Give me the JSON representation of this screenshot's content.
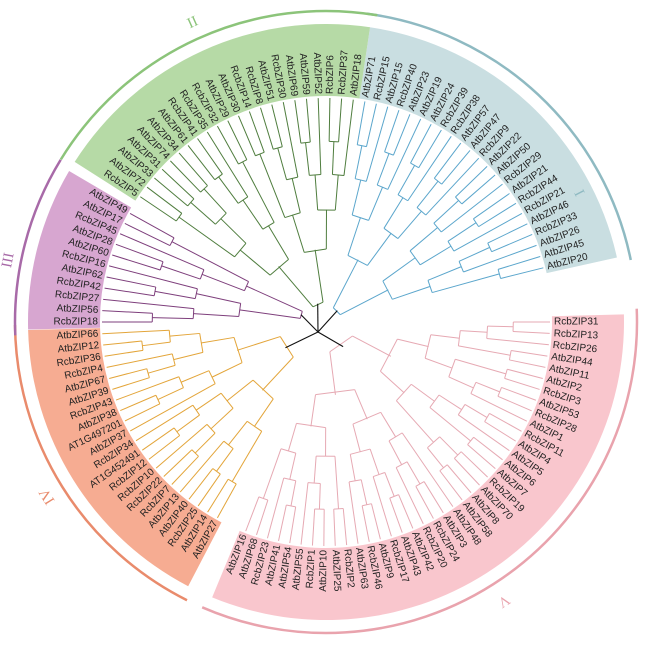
{
  "clades": [
    {
      "id": "I",
      "label": "I",
      "line_color": "#5ba6cc",
      "bg_color": "#c9dee1",
      "arc_color": "#8fbac2",
      "leaves": [
        "AtbZIP71",
        "RcbZIP15",
        "AtbZIP15",
        "RcbZIP40",
        "AtbZIP23",
        "AtbZIP19",
        "AtbZIP24",
        "RcbZIP39",
        "RcbZIP38",
        "AtbZIP57",
        "AtbZIP47",
        "RcbZIP9",
        "AtbZIP22",
        "AtbZIP50",
        "RcbZIP29",
        "AtbZIP21",
        "RcbZIP44",
        "RcbZIP21",
        "AtbZIP46",
        "RcbZIP33",
        "AtbZIP26",
        "AtbZIP45",
        "AtbZIP20"
      ]
    },
    {
      "id": "V",
      "label": "V",
      "line_color": "#e6a9b3",
      "bg_color": "#f9c6cd",
      "arc_color": "#e9a3ad",
      "leaves": [
        "RcbZIP31",
        "RcbZIP13",
        "RcbZIP26",
        "AtbZIP44",
        "AtbZIP11",
        "AtbZIP2",
        "RcbZIP3",
        "AtbZIP53",
        "RcbZIP28",
        "AtbZIP1",
        "RcbZIP11",
        "AtbZIP4",
        "AtbZIP5",
        "AtbZIP6",
        "AtbZIP7",
        "RcbZIP19",
        "AtbZIP70",
        "AtbZIP8",
        "AtbZIP58",
        "AtbZIP48",
        "AtbZIP3",
        "RcbZIP24",
        "RcbZIP20",
        "AtbZIP42",
        "AtbZIP43",
        "RcbZIP17",
        "AtbZIP9",
        "RcbZIP46",
        "AtbZIP63",
        "RcbZIP2",
        "AtbZIP25",
        "AtbZIP10",
        "RcbZIP1",
        "AtbZIP55",
        "AtbZIP54",
        "AtbZIP41",
        "RcbZIP23",
        "AtbZIP68",
        "AtbZIP16"
      ]
    },
    {
      "id": "IV",
      "label": "IV",
      "line_color": "#e3a53a",
      "bg_color": "#f6ac92",
      "arc_color": "#e98b6c",
      "leaves": [
        "AtbZIP27",
        "AtbZIP14",
        "RcbZIP25",
        "AtbZIP40",
        "AtbZIP13",
        "RcbZIP7",
        "RcbZIP22",
        "RcbZIP10",
        "RcbZIP12",
        "AT1G452491",
        "RcbZIP34",
        "AtbZIP37",
        "AT1G497201",
        "AtbZIP38",
        "RcbZIP43",
        "AtbZIP39",
        "AtbZIP67",
        "RcbZIP4",
        "RcbZIP36",
        "AtbZIP12",
        "AtbZIP66"
      ]
    },
    {
      "id": "III",
      "label": "III",
      "line_color": "#7e3f7c",
      "bg_color": "#d7a6d0",
      "arc_color": "#a86aa8",
      "leaves": [
        "RcbZIP18",
        "AtbZIP56",
        "RcbZIP27",
        "RcbZIP42",
        "AtbZIP62",
        "RcbZIP16",
        "AtbZIP60",
        "AtbZIP28",
        "RcbZIP45",
        "AtbZIP17",
        "AtbZIP49"
      ]
    },
    {
      "id": "II",
      "label": "II",
      "line_color": "#4f7d3e",
      "bg_color": "#b6daa6",
      "arc_color": "#8cc47a",
      "leaves": [
        "RcbZIP5",
        "AtbZIP72",
        "AtbZIP33",
        "AtbZIP31",
        "AtbZIP74",
        "AtbZIP34",
        "AtbZIP61",
        "RcbZIP41",
        "RcbZIP35",
        "RcbZIP32",
        "AtbZIP29",
        "AtbZIP30",
        "RcbZIP14",
        "RcbZIP8",
        "AtbZIP51",
        "RcbZIP30",
        "AtbZIP69",
        "AtbZIP59",
        "AtbZIP52",
        "RcbZIP6",
        "RcbZIP37",
        "AtbZIP18"
      ]
    }
  ],
  "root_color": "#111111"
}
